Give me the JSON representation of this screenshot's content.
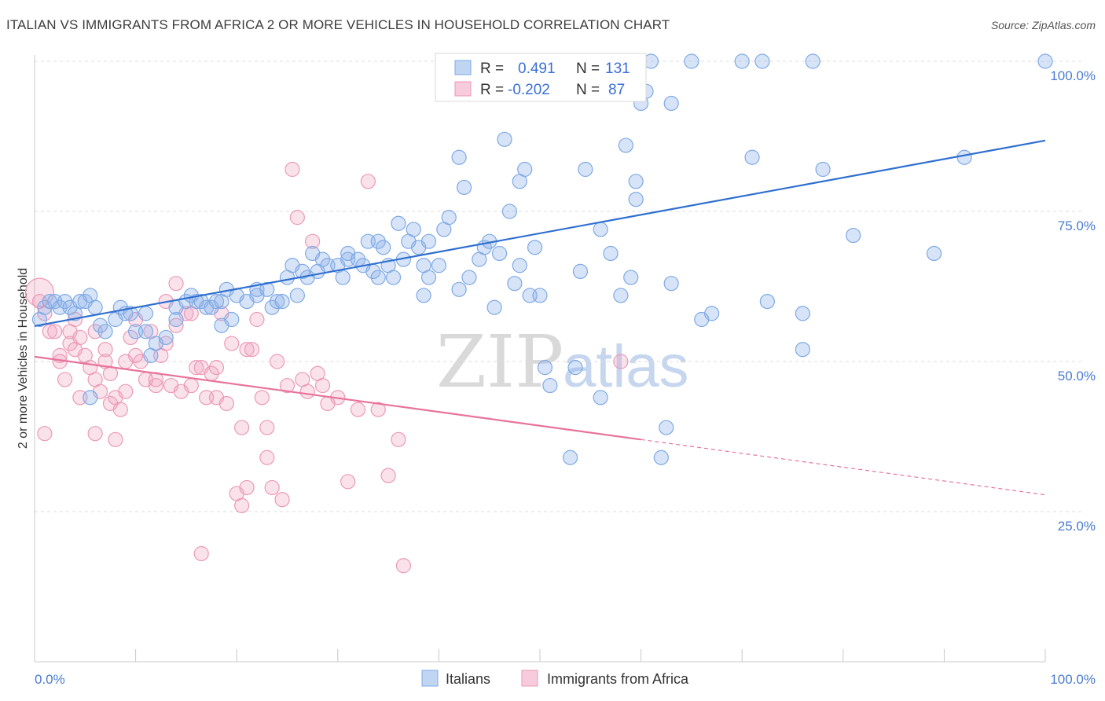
{
  "title": "ITALIAN VS IMMIGRANTS FROM AFRICA 2 OR MORE VEHICLES IN HOUSEHOLD CORRELATION CHART",
  "source": "Source: ZipAtlas.com",
  "watermark": {
    "zip": "ZIP",
    "atlas": "atlas"
  },
  "colors": {
    "blue": "#7fa9e6",
    "blue_fill": "rgba(140,178,232,0.35)",
    "blue_line": "#2f6fd0",
    "pink": "#ec9ab6",
    "pink_fill": "rgba(240,160,190,0.30)",
    "pink_line": "#e8739c",
    "grid": "#dddddd",
    "axis_text": "#4a7bd0"
  },
  "legend": {
    "rows": [
      {
        "r_label": "R =",
        "r_value": "0.491",
        "n_label": "N =",
        "n_value": "131",
        "series": "Italians"
      },
      {
        "r_label": "R =",
        "r_value": "-0.202",
        "n_label": "N =",
        "n_value": "87",
        "series": "Immigrants from Africa"
      }
    ]
  },
  "chart_data": {
    "type": "scatter",
    "xlabel": "",
    "ylabel": "2 or more Vehicles in Household",
    "xlim": [
      0,
      100
    ],
    "ylim": [
      0,
      100
    ],
    "x_tick_labels": [
      "0.0%",
      "100.0%"
    ],
    "y_tick_labels": [
      "25.0%",
      "50.0%",
      "75.0%",
      "100.0%"
    ],
    "y_ticks": [
      25,
      50,
      75,
      100
    ],
    "grid": true,
    "legend_placement": "top-center",
    "series": [
      {
        "name": "Italians",
        "trend": {
          "x": [
            0,
            100
          ],
          "y": [
            55.9,
            86.8
          ],
          "style": "solid"
        },
        "points": [
          [
            0.5,
            57
          ],
          [
            1,
            59
          ],
          [
            1.5,
            60
          ],
          [
            2,
            60
          ],
          [
            2.5,
            59
          ],
          [
            3,
            60
          ],
          [
            3.5,
            59
          ],
          [
            4,
            58
          ],
          [
            4.5,
            60
          ],
          [
            5,
            60
          ],
          [
            5.5,
            61
          ],
          [
            6,
            59
          ],
          [
            6.5,
            56
          ],
          [
            7,
            55
          ],
          [
            8,
            57
          ],
          [
            8.5,
            59
          ],
          [
            9,
            58
          ],
          [
            9.5,
            58
          ],
          [
            10,
            55
          ],
          [
            11,
            55
          ],
          [
            11.5,
            51
          ],
          [
            11,
            58
          ],
          [
            12,
            53
          ],
          [
            13,
            54
          ],
          [
            14,
            57
          ],
          [
            14,
            59
          ],
          [
            15,
            60
          ],
          [
            15.5,
            61
          ],
          [
            16,
            60
          ],
          [
            16.5,
            60
          ],
          [
            17,
            59
          ],
          [
            17.5,
            59
          ],
          [
            18,
            60
          ],
          [
            18.5,
            60
          ],
          [
            19,
            62
          ],
          [
            18.5,
            56
          ],
          [
            19.5,
            57
          ],
          [
            20,
            61
          ],
          [
            21,
            60
          ],
          [
            22,
            61
          ],
          [
            22,
            62
          ],
          [
            23,
            62
          ],
          [
            23.5,
            59
          ],
          [
            24,
            60
          ],
          [
            24.5,
            60
          ],
          [
            26,
            61
          ],
          [
            25,
            64
          ],
          [
            25.5,
            66
          ],
          [
            26.5,
            65
          ],
          [
            27,
            64
          ],
          [
            27.5,
            68
          ],
          [
            28,
            65
          ],
          [
            28.5,
            67
          ],
          [
            29,
            66
          ],
          [
            30,
            66
          ],
          [
            30.5,
            64
          ],
          [
            31,
            67
          ],
          [
            31,
            68
          ],
          [
            32,
            67
          ],
          [
            32.5,
            66
          ],
          [
            33,
            70
          ],
          [
            33.5,
            65
          ],
          [
            34,
            70
          ],
          [
            34,
            64
          ],
          [
            34.5,
            69
          ],
          [
            35,
            66
          ],
          [
            35.5,
            64
          ],
          [
            36,
            73
          ],
          [
            36.5,
            67
          ],
          [
            37,
            70
          ],
          [
            37.5,
            72
          ],
          [
            38,
            69
          ],
          [
            38.5,
            66
          ],
          [
            39,
            70
          ],
          [
            38.5,
            61
          ],
          [
            39,
            64
          ],
          [
            40,
            66
          ],
          [
            40.5,
            72
          ],
          [
            41,
            74
          ],
          [
            42,
            84
          ],
          [
            42.5,
            79
          ],
          [
            42,
            62
          ],
          [
            43,
            64
          ],
          [
            44,
            67
          ],
          [
            44.5,
            69
          ],
          [
            45,
            70
          ],
          [
            45.5,
            59
          ],
          [
            46,
            68
          ],
          [
            46.5,
            87
          ],
          [
            47,
            75
          ],
          [
            47.5,
            63
          ],
          [
            48,
            66
          ],
          [
            48,
            80
          ],
          [
            48.5,
            82
          ],
          [
            49,
            61
          ],
          [
            49.5,
            69
          ],
          [
            50,
            61
          ],
          [
            50.5,
            49
          ],
          [
            51,
            46
          ],
          [
            53,
            34
          ],
          [
            53.5,
            49
          ],
          [
            54,
            65
          ],
          [
            54.5,
            82
          ],
          [
            56,
            44
          ],
          [
            56,
            72
          ],
          [
            57,
            68
          ],
          [
            58,
            61
          ],
          [
            58.5,
            86
          ],
          [
            59,
            64
          ],
          [
            59.5,
            77
          ],
          [
            59.5,
            80
          ],
          [
            60,
            93
          ],
          [
            60.5,
            95
          ],
          [
            61,
            100
          ],
          [
            62,
            34
          ],
          [
            62.5,
            39
          ],
          [
            63,
            63
          ],
          [
            63,
            93
          ],
          [
            65,
            100
          ],
          [
            66,
            57
          ],
          [
            67,
            58
          ],
          [
            70,
            100
          ],
          [
            71,
            84
          ],
          [
            72,
            100
          ],
          [
            72.5,
            60
          ],
          [
            76,
            52
          ],
          [
            76,
            58
          ],
          [
            77,
            100
          ],
          [
            78,
            82
          ],
          [
            81,
            71
          ],
          [
            89,
            68
          ],
          [
            92,
            84
          ],
          [
            100,
            100
          ],
          [
            5.5,
            44
          ]
        ]
      },
      {
        "name": "Immigrants from Africa",
        "trend": {
          "x": [
            0,
            60
          ],
          "y": [
            50.8,
            37.0
          ],
          "x_dashed_end": 100,
          "y_dashed_end": 27.8,
          "style": "solid+dashed"
        },
        "points": [
          [
            0.5,
            60
          ],
          [
            1,
            58
          ],
          [
            1.5,
            55
          ],
          [
            2,
            55
          ],
          [
            2.5,
            51
          ],
          [
            2.5,
            50
          ],
          [
            3,
            47
          ],
          [
            3.5,
            55
          ],
          [
            3.5,
            53
          ],
          [
            4,
            57
          ],
          [
            4,
            52
          ],
          [
            4.5,
            54
          ],
          [
            4.5,
            44
          ],
          [
            5,
            51
          ],
          [
            5.5,
            49
          ],
          [
            6,
            47
          ],
          [
            6,
            38
          ],
          [
            6.5,
            45
          ],
          [
            7,
            52
          ],
          [
            7,
            50
          ],
          [
            7.5,
            48
          ],
          [
            7.5,
            43
          ],
          [
            8,
            44
          ],
          [
            8,
            37
          ],
          [
            8.5,
            42
          ],
          [
            9,
            50
          ],
          [
            9,
            45
          ],
          [
            9.5,
            54
          ],
          [
            10,
            57
          ],
          [
            10,
            51
          ],
          [
            10.5,
            50
          ],
          [
            11,
            47
          ],
          [
            11.5,
            55
          ],
          [
            12,
            46
          ],
          [
            12,
            47
          ],
          [
            12.5,
            51
          ],
          [
            13,
            60
          ],
          [
            13,
            53
          ],
          [
            13.5,
            46
          ],
          [
            14,
            63
          ],
          [
            14,
            56
          ],
          [
            14.5,
            45
          ],
          [
            15,
            58
          ],
          [
            15.5,
            46
          ],
          [
            15.5,
            58
          ],
          [
            16,
            49
          ],
          [
            16.5,
            49
          ],
          [
            17,
            44
          ],
          [
            17.5,
            48
          ],
          [
            18,
            44
          ],
          [
            18,
            49
          ],
          [
            18.5,
            58
          ],
          [
            19,
            43
          ],
          [
            19.5,
            53
          ],
          [
            20,
            28
          ],
          [
            20.5,
            39
          ],
          [
            20.5,
            26
          ],
          [
            21,
            52
          ],
          [
            21,
            29
          ],
          [
            21.5,
            52
          ],
          [
            22,
            57
          ],
          [
            22.5,
            44
          ],
          [
            23,
            39
          ],
          [
            23,
            34
          ],
          [
            23.5,
            29
          ],
          [
            24,
            50
          ],
          [
            24.5,
            27
          ],
          [
            25,
            46
          ],
          [
            25.5,
            82
          ],
          [
            26,
            74
          ],
          [
            26.5,
            47
          ],
          [
            27,
            45
          ],
          [
            27.5,
            70
          ],
          [
            28,
            48
          ],
          [
            28.5,
            46
          ],
          [
            29,
            43
          ],
          [
            30,
            44
          ],
          [
            31,
            30
          ],
          [
            32,
            42
          ],
          [
            33,
            80
          ],
          [
            34,
            42
          ],
          [
            35,
            31
          ],
          [
            36,
            37
          ],
          [
            36.5,
            16
          ],
          [
            58,
            50
          ],
          [
            16.5,
            18
          ],
          [
            1,
            38
          ],
          [
            6,
            55
          ]
        ]
      }
    ]
  }
}
